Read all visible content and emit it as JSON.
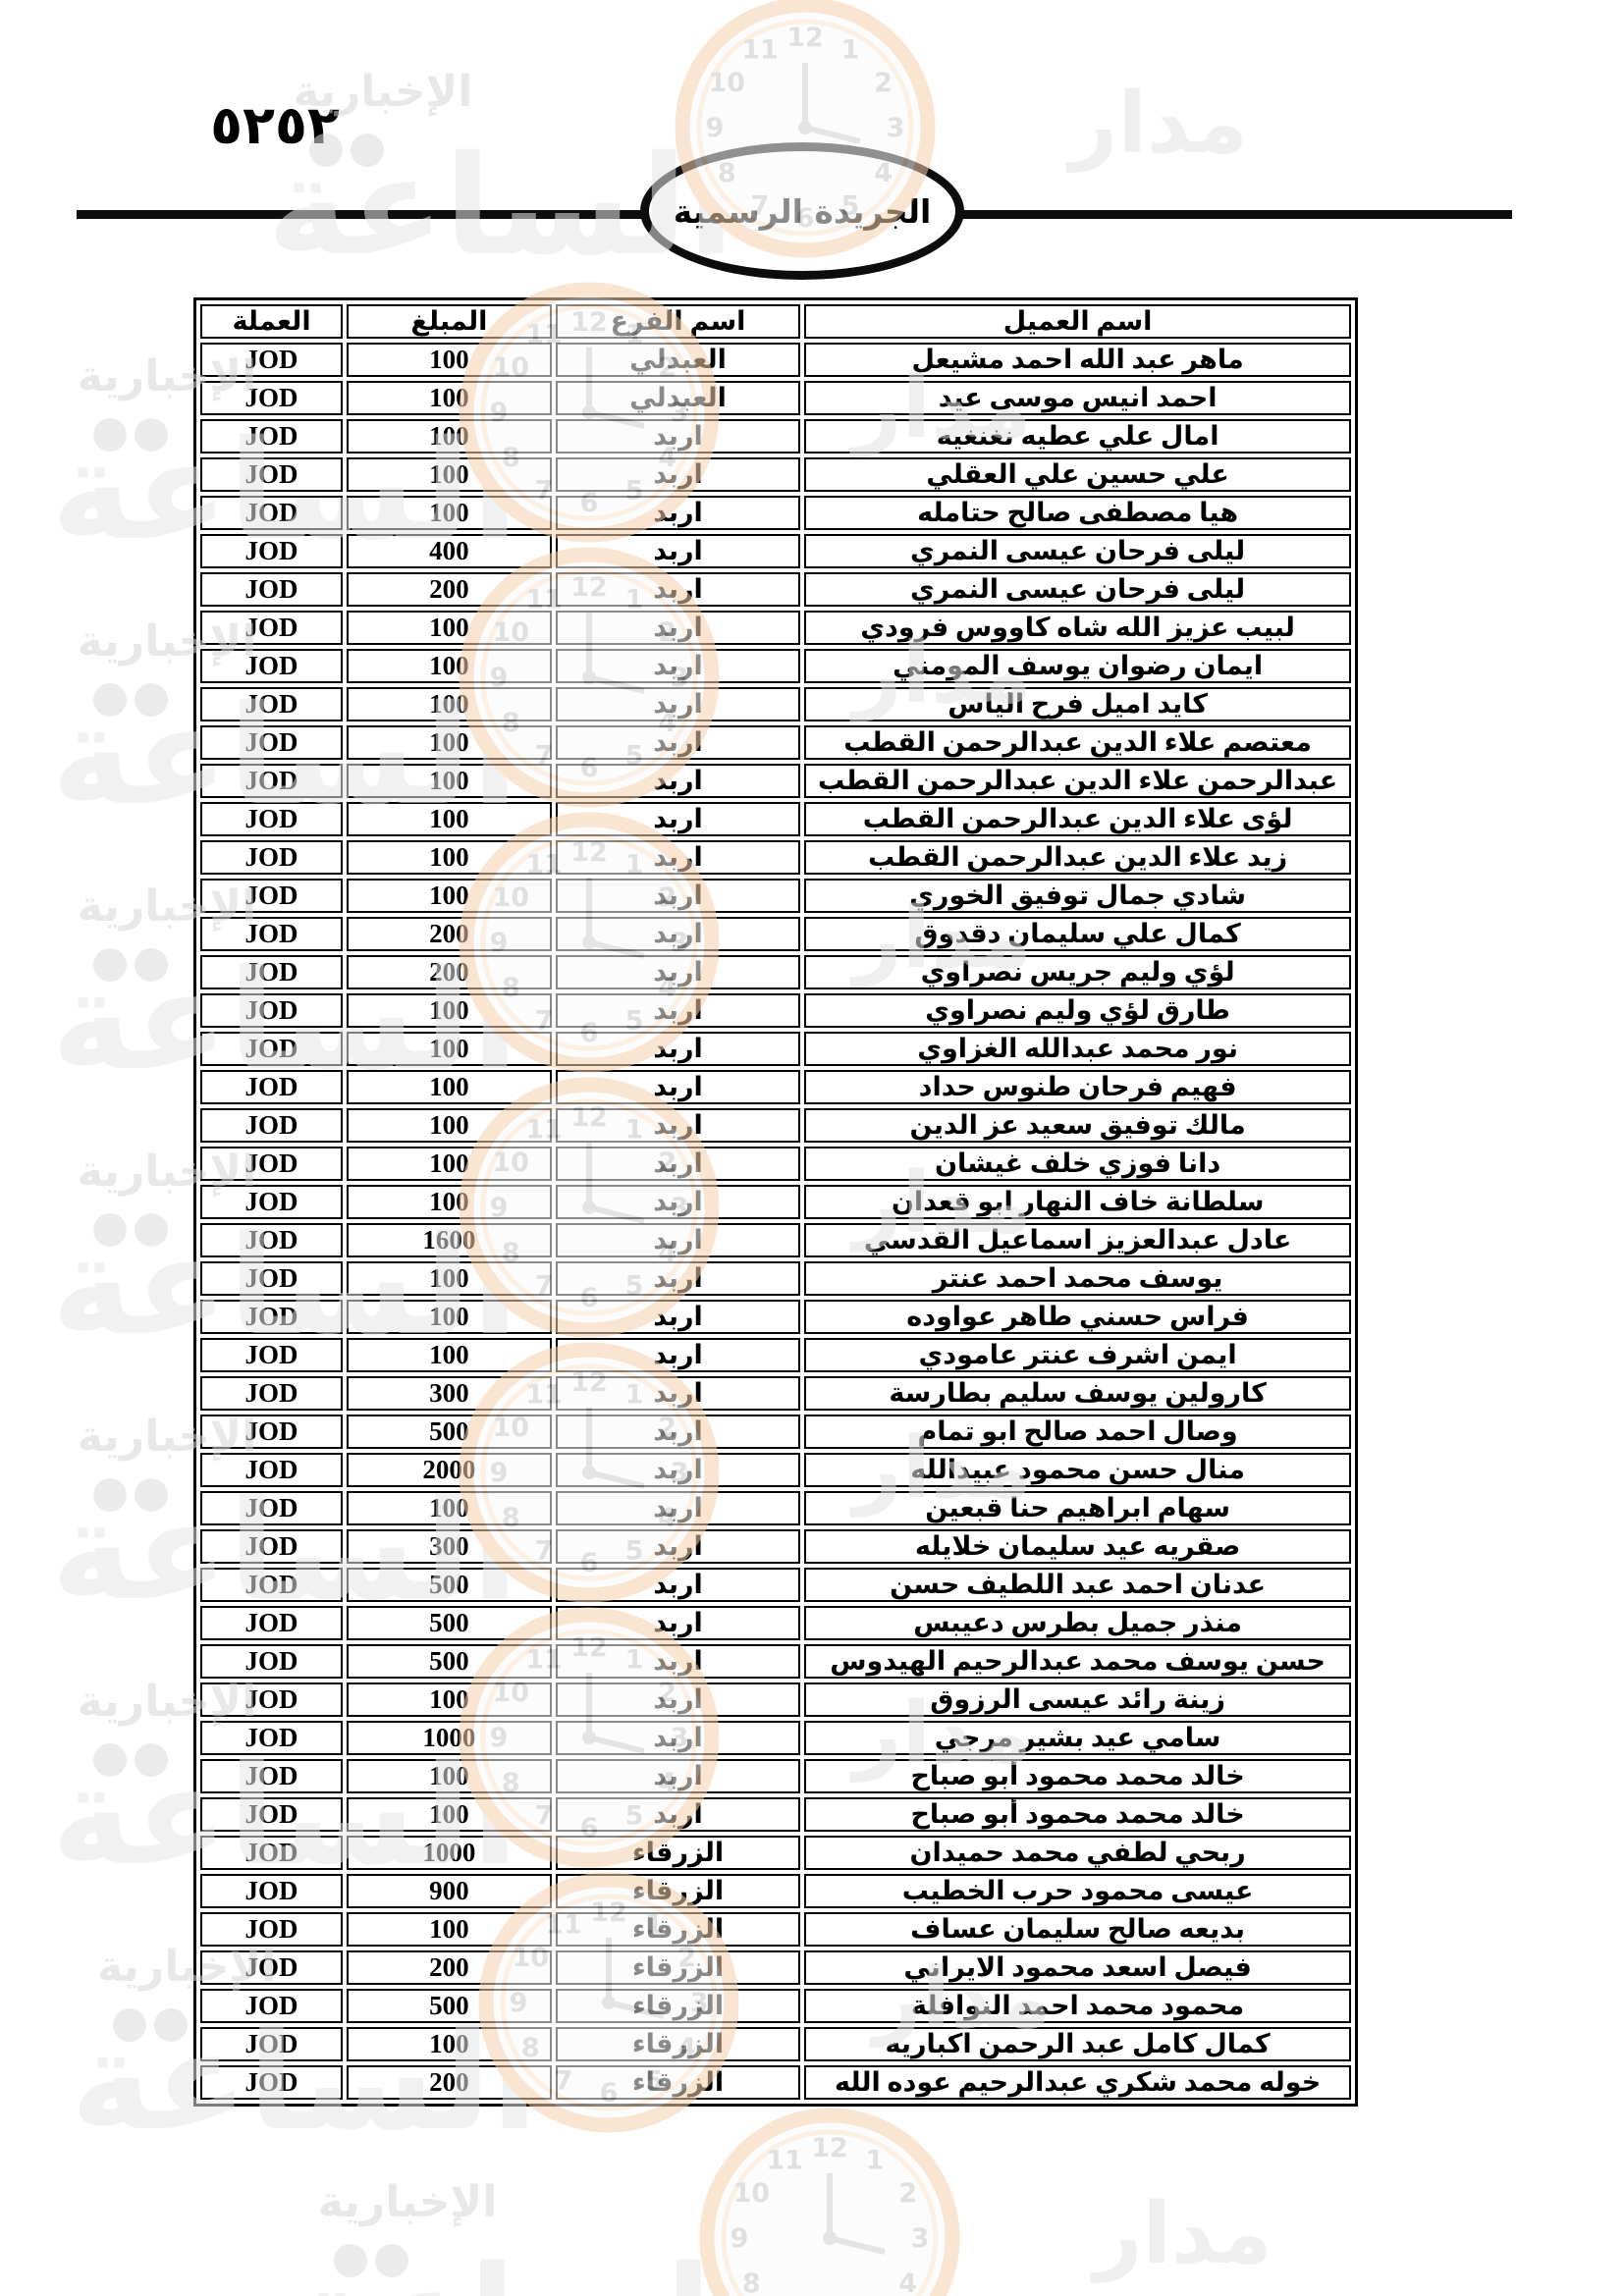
{
  "page": {
    "page_number": "٥٢٥٢",
    "gazette_label": "الجريدة الرسمية"
  },
  "watermark": {
    "news_word": "الإخبارية",
    "brand_word_1": "مدار",
    "brand_word_2": "الساعة",
    "clock_numbers": [
      "12",
      "1",
      "2",
      "3",
      "4",
      "5",
      "6",
      "7",
      "8",
      "9",
      "10",
      "11"
    ]
  },
  "table": {
    "columns": [
      "اسم العميل",
      "اسم الفرع",
      "المبلغ",
      "العملة"
    ],
    "rows": [
      {
        "name": "ماهر عبد الله احمد مشيعل",
        "branch": "العبدلي",
        "amount": "100",
        "currency": "JOD"
      },
      {
        "name": "احمد انيس موسى عيد",
        "branch": "العبدلي",
        "amount": "100",
        "currency": "JOD"
      },
      {
        "name": "امال علي عطيه نغنغيه",
        "branch": "اربد",
        "amount": "100",
        "currency": "JOD"
      },
      {
        "name": "علي حسين علي العقلي",
        "branch": "اربد",
        "amount": "100",
        "currency": "JOD"
      },
      {
        "name": "هيا مصطفى صالح حتامله",
        "branch": "اربد",
        "amount": "100",
        "currency": "JOD"
      },
      {
        "name": "ليلى فرحان عيسى النمري",
        "branch": "اربد",
        "amount": "400",
        "currency": "JOD"
      },
      {
        "name": "ليلى فرحان عيسى النمري",
        "branch": "اربد",
        "amount": "200",
        "currency": "JOD"
      },
      {
        "name": "لبيب عزيز الله شاه كاووس فرودي",
        "branch": "اربد",
        "amount": "100",
        "currency": "JOD"
      },
      {
        "name": "ايمان رضوان يوسف المومني",
        "branch": "اربد",
        "amount": "100",
        "currency": "JOD"
      },
      {
        "name": "كايد اميل فرح الياس",
        "branch": "اربد",
        "amount": "100",
        "currency": "JOD"
      },
      {
        "name": "معتصم علاء الدين عبدالرحمن القطب",
        "branch": "اربد",
        "amount": "100",
        "currency": "JOD"
      },
      {
        "name": "عبدالرحمن علاء الدين عبدالرحمن القطب",
        "branch": "اربد",
        "amount": "100",
        "currency": "JOD"
      },
      {
        "name": "لؤى علاء الدين عبدالرحمن القطب",
        "branch": "اربد",
        "amount": "100",
        "currency": "JOD"
      },
      {
        "name": "زيد علاء الدين عبدالرحمن القطب",
        "branch": "اربد",
        "amount": "100",
        "currency": "JOD"
      },
      {
        "name": "شادي  جمال توفيق الخوري",
        "branch": "اربد",
        "amount": "100",
        "currency": "JOD"
      },
      {
        "name": "كمال علي سليمان دقدوق",
        "branch": "اربد",
        "amount": "200",
        "currency": "JOD"
      },
      {
        "name": "لؤي وليم جريس نصراوي",
        "branch": "اربد",
        "amount": "200",
        "currency": "JOD"
      },
      {
        "name": "طارق لؤي وليم نصراوي",
        "branch": "اربد",
        "amount": "100",
        "currency": "JOD"
      },
      {
        "name": "نور محمد عبدالله الغزاوي",
        "branch": "اربد",
        "amount": "100",
        "currency": "JOD"
      },
      {
        "name": "فهيم فرحان طنوس حداد",
        "branch": "اربد",
        "amount": "100",
        "currency": "JOD"
      },
      {
        "name": "مالك توفيق سعيد عز الدين",
        "branch": "اربد",
        "amount": "100",
        "currency": "JOD"
      },
      {
        "name": "دانا فوزي خلف غيشان",
        "branch": "اربد",
        "amount": "100",
        "currency": "JOD"
      },
      {
        "name": "سلطانة خاف النهار ابو قعدان",
        "branch": "اربد",
        "amount": "100",
        "currency": "JOD"
      },
      {
        "name": "عادل عبدالعزيز اسماعيل القدسي",
        "branch": "اربد",
        "amount": "1600",
        "currency": "JOD"
      },
      {
        "name": "يوسف محمد احمد عنتر",
        "branch": "اربد",
        "amount": "100",
        "currency": "JOD"
      },
      {
        "name": "فراس حسني طاهر عواوده",
        "branch": "اربد",
        "amount": "100",
        "currency": "JOD"
      },
      {
        "name": "ايمن اشرف عنتر عامودي",
        "branch": "اربد",
        "amount": "100",
        "currency": "JOD"
      },
      {
        "name": "كارولين يوسف سليم بطارسة",
        "branch": "اربد",
        "amount": "300",
        "currency": "JOD"
      },
      {
        "name": "وصال احمد صالح ابو تمام",
        "branch": "اربد",
        "amount": "500",
        "currency": "JOD"
      },
      {
        "name": "منال حسن محمود عبيدالله",
        "branch": "اربد",
        "amount": "2000",
        "currency": "JOD"
      },
      {
        "name": "سهام ابراهيم حنا قبعين",
        "branch": "اربد",
        "amount": "100",
        "currency": "JOD"
      },
      {
        "name": "صقريه عيد سليمان خلايله",
        "branch": "اربد",
        "amount": "300",
        "currency": "JOD"
      },
      {
        "name": "عدنان احمد عبد اللطيف حسن",
        "branch": "اربد",
        "amount": "500",
        "currency": "JOD"
      },
      {
        "name": "منذر جميل بطرس دعيبس",
        "branch": "اربد",
        "amount": "500",
        "currency": "JOD"
      },
      {
        "name": "حسن يوسف محمد عبدالرحيم الهيدوس",
        "branch": "اربد",
        "amount": "500",
        "currency": "JOD"
      },
      {
        "name": "زينة رائد عيسى الرزوق",
        "branch": "اربد",
        "amount": "100",
        "currency": "JOD"
      },
      {
        "name": "سامي عيد بشير مرجي",
        "branch": "اربد",
        "amount": "1000",
        "currency": "JOD"
      },
      {
        "name": "خالد محمد محمود أبو صباح",
        "branch": "اربد",
        "amount": "100",
        "currency": "JOD"
      },
      {
        "name": "خالد محمد محمود أبو صباح",
        "branch": "اربد",
        "amount": "100",
        "currency": "JOD"
      },
      {
        "name": "ربحي لطفي محمد حميدان",
        "branch": "الزرقاء",
        "amount": "1000",
        "currency": "JOD"
      },
      {
        "name": "عيسى محمود حرب الخطيب",
        "branch": "الزرقاء",
        "amount": "900",
        "currency": "JOD"
      },
      {
        "name": "بديعه صالح سليمان عساف",
        "branch": "الزرقاء",
        "amount": "100",
        "currency": "JOD"
      },
      {
        "name": "فيصل اسعد محمود الايراني",
        "branch": "الزرقاء",
        "amount": "200",
        "currency": "JOD"
      },
      {
        "name": "محمود محمد احمد النوافلة",
        "branch": "الزرقاء",
        "amount": "500",
        "currency": "JOD"
      },
      {
        "name": "كمال كامل عبد الرحمن اكباريه",
        "branch": "الزرقاء",
        "amount": "100",
        "currency": "JOD"
      },
      {
        "name": "خوله محمد شكري عبدالرحيم عوده الله",
        "branch": "الزرقاء",
        "amount": "200",
        "currency": "JOD"
      }
    ]
  }
}
